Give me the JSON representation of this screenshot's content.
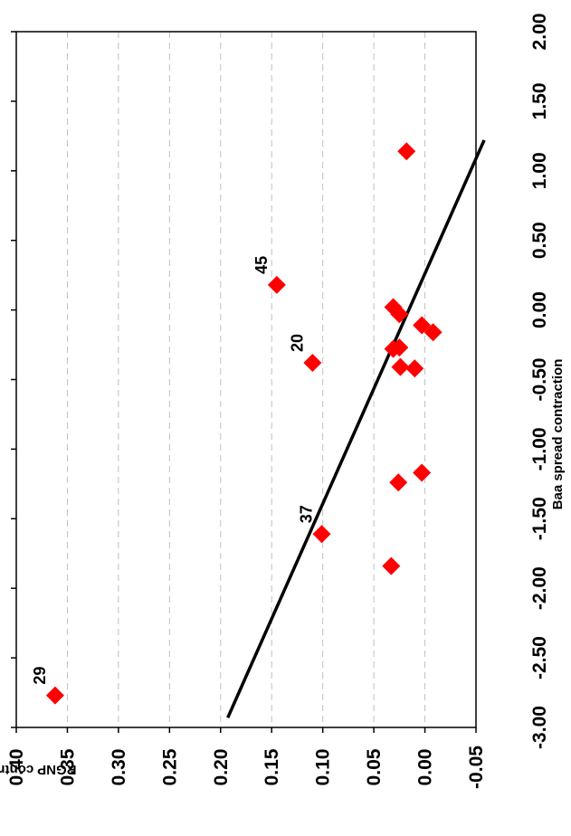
{
  "chart_data": {
    "type": "scatter",
    "orientation": "rotated-90-counterclockwise",
    "xlabel": "Baa spread contraction",
    "ylabel": "RGNP contraction",
    "xlim": [
      -3.0,
      2.0
    ],
    "ylim": [
      -0.05,
      0.4
    ],
    "x_ticks": [
      "-3.00",
      "-2.50",
      "-2.00",
      "-1.50",
      "-1.00",
      "-0.50",
      "0.00",
      "0.50",
      "1.00",
      "1.50",
      "2.00"
    ],
    "y_ticks": [
      "-0.05",
      "0.00",
      "0.05",
      "0.10",
      "0.15",
      "0.20",
      "0.25",
      "0.30",
      "0.35",
      "0.40"
    ],
    "grid": "horizontal dashed gridlines at y ticks",
    "marker_color": "#ff0000",
    "points": [
      {
        "x": -2.77,
        "y": 0.362,
        "label": "29"
      },
      {
        "x": -1.84,
        "y": 0.033,
        "label": ""
      },
      {
        "x": -1.61,
        "y": 0.101,
        "label": "37"
      },
      {
        "x": -1.24,
        "y": 0.026,
        "label": ""
      },
      {
        "x": -1.17,
        "y": 0.003,
        "label": ""
      },
      {
        "x": -0.42,
        "y": 0.01,
        "label": ""
      },
      {
        "x": -0.41,
        "y": 0.024,
        "label": ""
      },
      {
        "x": -0.38,
        "y": 0.11,
        "label": "20"
      },
      {
        "x": -0.28,
        "y": 0.031,
        "label": ""
      },
      {
        "x": -0.27,
        "y": 0.025,
        "label": ""
      },
      {
        "x": -0.16,
        "y": -0.008,
        "label": ""
      },
      {
        "x": -0.11,
        "y": 0.003,
        "label": ""
      },
      {
        "x": -0.03,
        "y": 0.025,
        "label": ""
      },
      {
        "x": 0.02,
        "y": 0.031,
        "label": ""
      },
      {
        "x": 0.18,
        "y": 0.145,
        "label": "45"
      },
      {
        "x": 1.14,
        "y": 0.018,
        "label": ""
      }
    ],
    "fit_line": {
      "x": [
        -2.93,
        1.22
      ],
      "y": [
        0.193,
        -0.058
      ]
    }
  }
}
